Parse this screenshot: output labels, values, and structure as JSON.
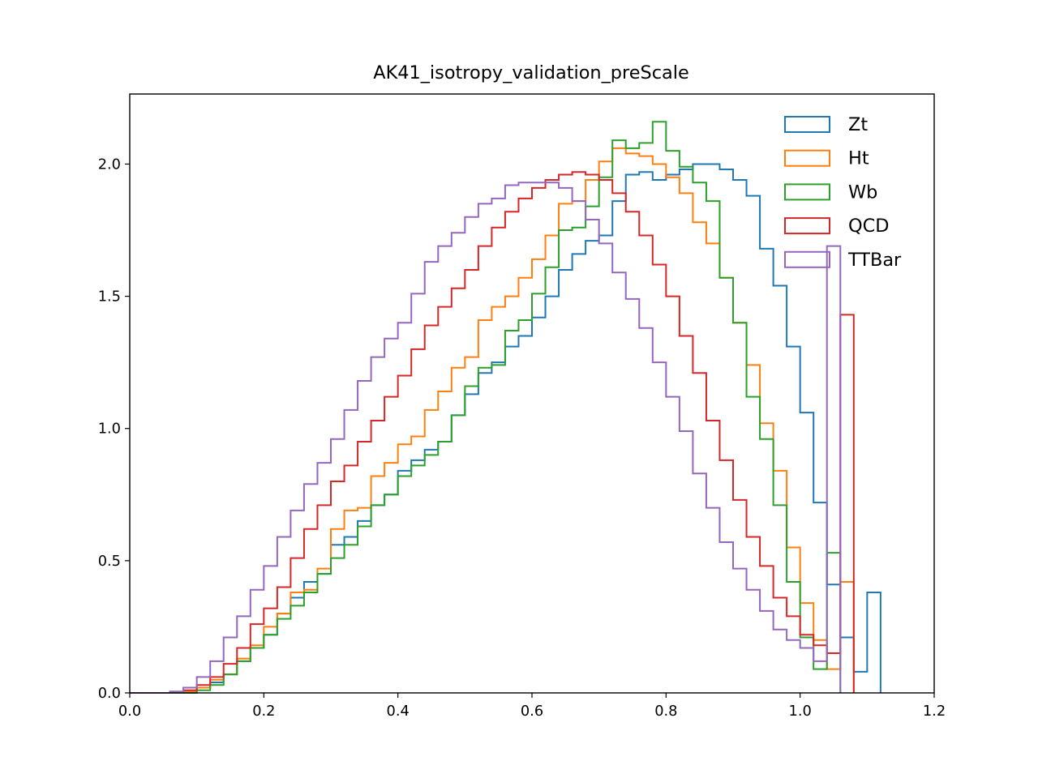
{
  "chart_data": {
    "type": "histogram-step",
    "title": "AK41_isotropy_validation_preScale",
    "xlabel": "",
    "ylabel": "",
    "xlim": [
      0.0,
      1.2
    ],
    "ylim": [
      0.0,
      2.265
    ],
    "x_ticks": [
      0.0,
      0.2,
      0.4,
      0.6,
      0.8,
      1.0,
      1.2
    ],
    "x_tick_labels": [
      "0.0",
      "0.2",
      "0.4",
      "0.6",
      "0.8",
      "1.0",
      "1.2"
    ],
    "y_ticks": [
      0.0,
      0.5,
      1.0,
      1.5,
      2.0
    ],
    "y_tick_labels": [
      "0.0",
      "0.5",
      "1.0",
      "1.5",
      "2.0"
    ],
    "grid": false,
    "legend_position": "top-right",
    "bin_start": 0.0,
    "bin_width": 0.02,
    "series": [
      {
        "name": "Zt",
        "color": "#1f77b4",
        "values": [
          0,
          0,
          0,
          0,
          0.005,
          0.02,
          0.04,
          0.07,
          0.12,
          0.17,
          0.22,
          0.3,
          0.36,
          0.42,
          0.45,
          0.56,
          0.59,
          0.65,
          0.71,
          0.75,
          0.84,
          0.88,
          0.92,
          0.95,
          1.05,
          1.13,
          1.21,
          1.25,
          1.31,
          1.35,
          1.42,
          1.5,
          1.6,
          1.66,
          1.71,
          1.73,
          1.86,
          1.96,
          1.97,
          1.94,
          1.96,
          1.98,
          2.0,
          2.0,
          1.98,
          1.94,
          1.88,
          1.68,
          1.54,
          1.31,
          1.06,
          0.72,
          0.41,
          0.21,
          0.08,
          0.38
        ]
      },
      {
        "name": "Ht",
        "color": "#ff7f0e",
        "values": [
          0,
          0,
          0,
          0,
          0.005,
          0.02,
          0.05,
          0.07,
          0.13,
          0.18,
          0.25,
          0.3,
          0.38,
          0.39,
          0.47,
          0.62,
          0.69,
          0.7,
          0.82,
          0.87,
          0.94,
          0.97,
          1.07,
          1.14,
          1.23,
          1.27,
          1.41,
          1.46,
          1.5,
          1.57,
          1.64,
          1.73,
          1.85,
          1.86,
          1.94,
          2.01,
          2.06,
          2.04,
          2.03,
          2.0,
          1.95,
          1.89,
          1.78,
          1.7,
          1.57,
          1.4,
          1.24,
          1.02,
          0.84,
          0.55,
          0.34,
          0.2,
          0.09,
          0.42
        ]
      },
      {
        "name": "Wb",
        "color": "#2ca02c",
        "values": [
          0,
          0,
          0,
          0,
          0,
          0.01,
          0.03,
          0.07,
          0.12,
          0.17,
          0.22,
          0.28,
          0.33,
          0.38,
          0.45,
          0.51,
          0.56,
          0.63,
          0.71,
          0.75,
          0.82,
          0.86,
          0.9,
          0.95,
          1.05,
          1.16,
          1.23,
          1.24,
          1.37,
          1.41,
          1.51,
          1.61,
          1.75,
          1.76,
          1.84,
          1.95,
          2.09,
          2.06,
          2.08,
          2.16,
          2.05,
          1.99,
          1.93,
          1.86,
          1.57,
          1.4,
          1.12,
          0.96,
          0.71,
          0.42,
          0.21,
          0.09,
          0.53
        ]
      },
      {
        "name": "QCD",
        "color": "#d62728",
        "values": [
          0,
          0,
          0,
          0.005,
          0.01,
          0.03,
          0.06,
          0.11,
          0.17,
          0.26,
          0.32,
          0.4,
          0.51,
          0.62,
          0.71,
          0.8,
          0.86,
          0.95,
          1.03,
          1.12,
          1.2,
          1.3,
          1.39,
          1.46,
          1.53,
          1.6,
          1.69,
          1.76,
          1.82,
          1.87,
          1.91,
          1.94,
          1.96,
          1.97,
          1.96,
          1.94,
          1.89,
          1.82,
          1.73,
          1.62,
          1.5,
          1.35,
          1.21,
          1.03,
          0.88,
          0.73,
          0.59,
          0.48,
          0.36,
          0.29,
          0.22,
          0.18,
          0.15,
          1.43
        ]
      },
      {
        "name": "TTBar",
        "color": "#9467bd",
        "values": [
          0,
          0,
          0,
          0.005,
          0.02,
          0.06,
          0.12,
          0.21,
          0.29,
          0.39,
          0.48,
          0.59,
          0.69,
          0.79,
          0.87,
          0.96,
          1.07,
          1.18,
          1.27,
          1.34,
          1.4,
          1.51,
          1.63,
          1.69,
          1.74,
          1.8,
          1.85,
          1.87,
          1.92,
          1.93,
          1.93,
          1.93,
          1.91,
          1.86,
          1.79,
          1.7,
          1.59,
          1.49,
          1.38,
          1.25,
          1.12,
          0.99,
          0.83,
          0.7,
          0.57,
          0.47,
          0.39,
          0.31,
          0.24,
          0.2,
          0.17,
          0.12,
          1.69
        ]
      }
    ]
  }
}
